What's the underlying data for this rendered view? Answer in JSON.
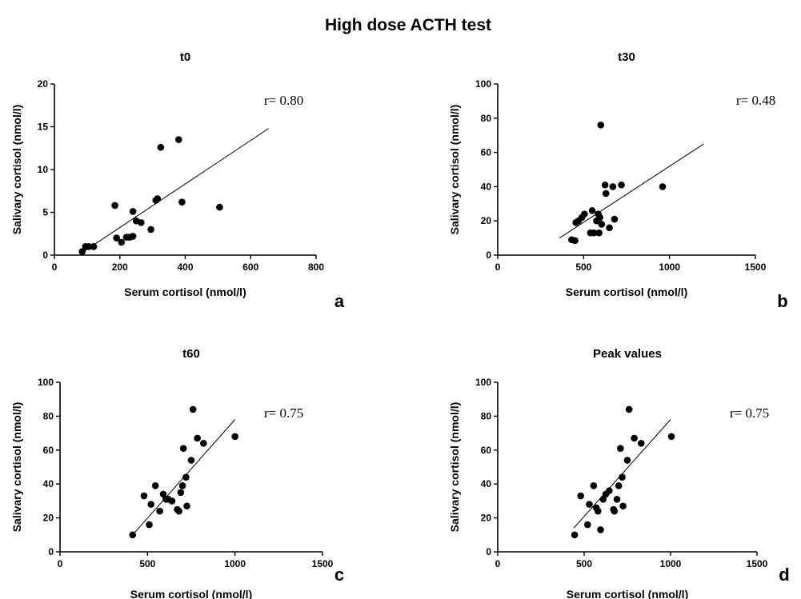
{
  "figure": {
    "title": "High dose ACTH test"
  },
  "chart_data": [
    {
      "type": "scatter",
      "panel": "a",
      "title": "t0",
      "xlabel": "Serum cortisol (nmol/l)",
      "ylabel": "Salivary cortisol (nmol/l)",
      "xlim": [
        0,
        800
      ],
      "ylim": [
        0,
        20
      ],
      "xticks": [
        0,
        200,
        400,
        600,
        800
      ],
      "yticks": [
        0,
        5,
        10,
        15,
        20
      ],
      "r_label": "r= 0.80",
      "fit_line": [
        [
          85,
          0.3
        ],
        [
          655,
          14.8
        ]
      ],
      "points": [
        [
          85,
          0.4
        ],
        [
          95,
          1.0
        ],
        [
          105,
          1.0
        ],
        [
          120,
          1.0
        ],
        [
          185,
          5.8
        ],
        [
          190,
          2.0
        ],
        [
          205,
          1.5
        ],
        [
          220,
          2.1
        ],
        [
          230,
          2.1
        ],
        [
          240,
          2.2
        ],
        [
          240,
          5.1
        ],
        [
          250,
          4.0
        ],
        [
          265,
          3.8
        ],
        [
          295,
          3.0
        ],
        [
          310,
          6.4
        ],
        [
          315,
          6.6
        ],
        [
          325,
          12.6
        ],
        [
          380,
          13.5
        ],
        [
          390,
          6.2
        ],
        [
          505,
          5.6
        ]
      ]
    },
    {
      "type": "scatter",
      "panel": "b",
      "title": "t30",
      "xlabel": "Serum cortisol (nmol/l)",
      "ylabel": "Salivary cortisol (nmol/l)",
      "xlim": [
        0,
        1500
      ],
      "ylim": [
        0,
        100
      ],
      "xticks": [
        0,
        500,
        1000,
        1500
      ],
      "yticks": [
        0,
        20,
        40,
        60,
        80,
        100
      ],
      "r_label": "r= 0.48",
      "fit_line": [
        [
          360,
          10
        ],
        [
          1200,
          65
        ]
      ],
      "points": [
        [
          430,
          9
        ],
        [
          450,
          8.5
        ],
        [
          455,
          19
        ],
        [
          470,
          20
        ],
        [
          490,
          22
        ],
        [
          505,
          24
        ],
        [
          540,
          13
        ],
        [
          550,
          26
        ],
        [
          560,
          13
        ],
        [
          575,
          20
        ],
        [
          585,
          24
        ],
        [
          590,
          13
        ],
        [
          595,
          22
        ],
        [
          600,
          76
        ],
        [
          605,
          18
        ],
        [
          625,
          41
        ],
        [
          630,
          36
        ],
        [
          650,
          16
        ],
        [
          670,
          40
        ],
        [
          680,
          21
        ],
        [
          720,
          41
        ],
        [
          960,
          40
        ]
      ]
    },
    {
      "type": "scatter",
      "panel": "c",
      "title": "t60",
      "xlabel": "Serum cortisol (nmol/l)",
      "ylabel": "Salivary cortisol (nmol/l)",
      "xlim": [
        0,
        1500
      ],
      "ylim": [
        0,
        100
      ],
      "xticks": [
        0,
        500,
        1000,
        1500
      ],
      "yticks": [
        0,
        20,
        40,
        60,
        80,
        100
      ],
      "r_label": "r= 0.75",
      "fit_line": [
        [
          415,
          10
        ],
        [
          1000,
          78
        ]
      ],
      "points": [
        [
          415,
          10
        ],
        [
          480,
          33
        ],
        [
          510,
          16
        ],
        [
          520,
          28
        ],
        [
          545,
          39
        ],
        [
          570,
          24
        ],
        [
          590,
          34
        ],
        [
          605,
          31
        ],
        [
          620,
          31
        ],
        [
          640,
          30
        ],
        [
          670,
          25
        ],
        [
          680,
          24
        ],
        [
          690,
          35
        ],
        [
          700,
          39
        ],
        [
          705,
          61
        ],
        [
          720,
          44
        ],
        [
          725,
          27
        ],
        [
          750,
          54
        ],
        [
          760,
          84
        ],
        [
          785,
          67
        ],
        [
          820,
          64
        ],
        [
          1000,
          68
        ]
      ]
    },
    {
      "type": "scatter",
      "panel": "d",
      "title": "Peak values",
      "xlabel": "Serum cortisol (nmol/l)",
      "ylabel": "Salivary cortisol (nmol/l)",
      "xlim": [
        0,
        1500
      ],
      "ylim": [
        0,
        100
      ],
      "xticks": [
        0,
        500,
        1000,
        1500
      ],
      "yticks": [
        0,
        20,
        40,
        60,
        80,
        100
      ],
      "r_label": "r= 0.75",
      "fit_line": [
        [
          440,
          14
        ],
        [
          1000,
          78
        ]
      ],
      "points": [
        [
          445,
          10
        ],
        [
          480,
          33
        ],
        [
          520,
          16
        ],
        [
          530,
          28
        ],
        [
          555,
          39
        ],
        [
          570,
          26
        ],
        [
          580,
          24
        ],
        [
          595,
          13
        ],
        [
          610,
          31
        ],
        [
          625,
          34
        ],
        [
          645,
          36
        ],
        [
          670,
          25
        ],
        [
          675,
          24
        ],
        [
          690,
          31
        ],
        [
          700,
          39
        ],
        [
          710,
          61
        ],
        [
          720,
          44
        ],
        [
          725,
          27
        ],
        [
          750,
          54
        ],
        [
          760,
          84
        ],
        [
          790,
          67
        ],
        [
          830,
          64
        ],
        [
          1005,
          68
        ]
      ]
    }
  ]
}
